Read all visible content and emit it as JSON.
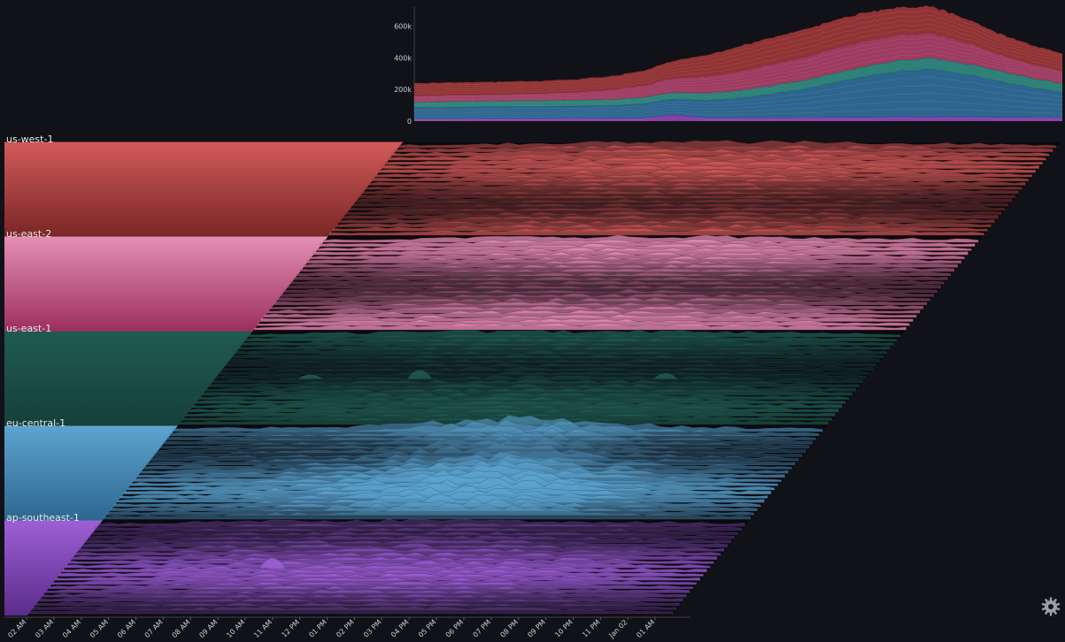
{
  "chart_data": [
    {
      "type": "area",
      "stacked": true,
      "grid": false,
      "y_ticks": [
        "0",
        "200k",
        "400k",
        "600k"
      ],
      "ylim": [
        0,
        720000
      ],
      "x": [
        0,
        0.05,
        0.1,
        0.15,
        0.2,
        0.25,
        0.3,
        0.35,
        0.4,
        0.45,
        0.5,
        0.55,
        0.6,
        0.65,
        0.7,
        0.75,
        0.8,
        0.85,
        0.9,
        0.95,
        1.0
      ],
      "series": [
        {
          "name": "ap-southeast-1",
          "color": "#8f3bb8",
          "values": [
            15000,
            15000,
            16000,
            16000,
            16000,
            17000,
            17000,
            18000,
            40000,
            20000,
            20000,
            21000,
            22000,
            23000,
            24000,
            25000,
            26000,
            25000,
            24000,
            23000,
            22000
          ]
        },
        {
          "name": "eu-central-1",
          "color": "#3274a5",
          "values": [
            70000,
            72000,
            74000,
            75000,
            76000,
            78000,
            80000,
            90000,
            100000,
            110000,
            125000,
            150000,
            180000,
            220000,
            260000,
            290000,
            300000,
            270000,
            230000,
            190000,
            160000
          ]
        },
        {
          "name": "us-east-1",
          "color": "#2b8f84",
          "values": [
            35000,
            36000,
            36000,
            37000,
            38000,
            38000,
            39000,
            40000,
            42000,
            45000,
            48000,
            52000,
            56000,
            60000,
            65000,
            70000,
            72000,
            70000,
            66000,
            60000,
            56000
          ]
        },
        {
          "name": "us-east-2",
          "color": "#b6436f",
          "values": [
            40000,
            40000,
            41000,
            42000,
            45000,
            50000,
            60000,
            75000,
            90000,
            105000,
            120000,
            135000,
            145000,
            155000,
            160000,
            160000,
            155000,
            135000,
            105000,
            90000,
            80000
          ]
        },
        {
          "name": "us-west-1",
          "color": "#a83a3a",
          "values": [
            80000,
            80000,
            80000,
            80000,
            80000,
            82000,
            85000,
            92000,
            110000,
            135000,
            160000,
            170000,
            175000,
            180000,
            180000,
            175000,
            170000,
            150000,
            130000,
            120000,
            110000
          ]
        }
      ]
    },
    {
      "type": "area",
      "stacked": false,
      "grid": false,
      "categories": [
        "02 AM",
        "03 AM",
        "04 AM",
        "05 AM",
        "06 AM",
        "07 AM",
        "08 AM",
        "09 AM",
        "10 AM",
        "11 AM",
        "12 PM",
        "01 PM",
        "02 PM",
        "03 PM",
        "04 PM",
        "05 PM",
        "06 PM",
        "07 PM",
        "08 PM",
        "09 PM",
        "10 PM",
        "11 PM",
        "Jan 02",
        "01 AM"
      ],
      "series": [
        {
          "name": "us-west-1",
          "color": "#d15a5a",
          "fade": "#7a2626"
        },
        {
          "name": "us-east-2",
          "color": "#e38fb2",
          "fade": "#9c2f5b"
        },
        {
          "name": "us-east-1",
          "color": "#1f5a50",
          "fade": "#15403a"
        },
        {
          "name": "eu-central-1",
          "color": "#5da4d0",
          "fade": "#2d6690"
        },
        {
          "name": "ap-southeast-1",
          "color": "#9d5fd6",
          "fade": "#5a2c8a"
        }
      ],
      "peaks": [
        {
          "series": "us-east-1",
          "x": "03 PM",
          "y": 0.4
        },
        {
          "series": "us-east-1",
          "x": "11 AM",
          "y": 0.2
        },
        {
          "series": "us-east-1",
          "x": "Jan 02",
          "y": 0.25
        },
        {
          "series": "ap-southeast-1",
          "x": "11 AM",
          "y": 0.45
        }
      ]
    }
  ],
  "labels": {
    "region0": "us-west-1",
    "region1": "us-east-2",
    "region2": "us-east-1",
    "region3": "eu-central-1",
    "region4": "ap-southeast-1"
  },
  "icons": {
    "settings": "gear-icon"
  }
}
